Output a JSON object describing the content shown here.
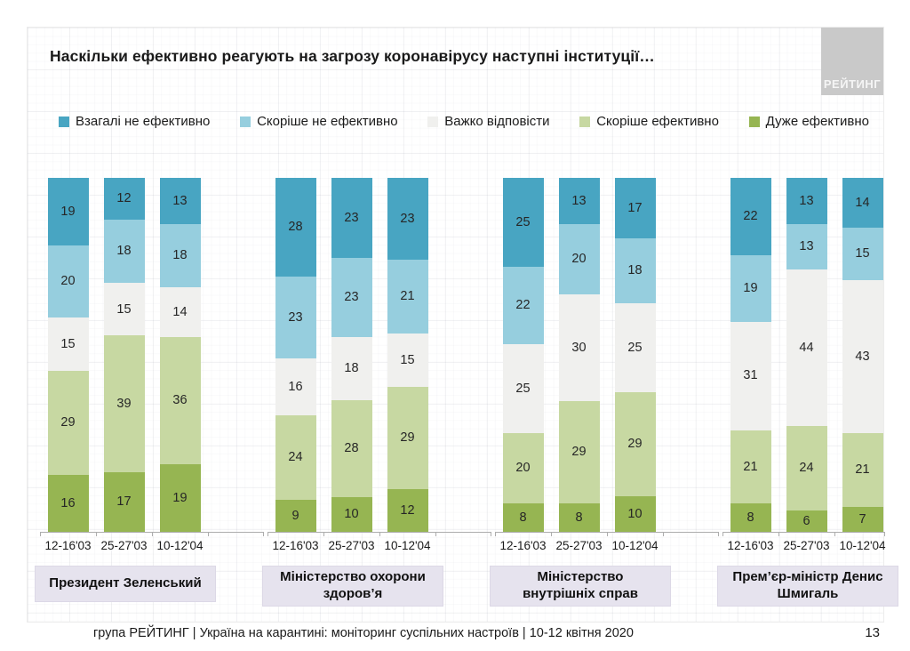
{
  "slide": {
    "title": "Наскільки ефективно реагують на загрозу коронавірусу наступні інституції…",
    "logo_text": "РЕЙТИНГ",
    "footer": "група РЕЙТИНГ | Україна на карантині: моніторинг суспільних настроїв  | 10-12 квітня  2020",
    "page_number": "13"
  },
  "chart_data": {
    "type": "bar",
    "variant": "stacked-100",
    "title": "Наскільки ефективно реагують на загрозу коронавірусу наступні інституції…",
    "legend_position": "top",
    "categories": [
      "12-16'03",
      "25-27'03",
      "10-12'04"
    ],
    "series": [
      {
        "name": "Взагалі не ефективно",
        "color": "#48a5c2"
      },
      {
        "name": "Скоріше не ефективно",
        "color": "#96cede"
      },
      {
        "name": "Важко відповісти",
        "color": "#f0f0ee"
      },
      {
        "name": "Скоріше ефективно",
        "color": "#c7d8a2"
      },
      {
        "name": "Дуже ефективно",
        "color": "#96b552"
      }
    ],
    "stack_order_top_to_bottom": true,
    "groups": [
      {
        "label": "Президент Зеленський",
        "bars": [
          [
            19,
            20,
            15,
            29,
            16
          ],
          [
            12,
            18,
            15,
            39,
            17
          ],
          [
            13,
            18,
            14,
            36,
            19
          ]
        ]
      },
      {
        "label": "Міністерство охорони здоров’я",
        "bars": [
          [
            28,
            23,
            16,
            24,
            9
          ],
          [
            23,
            23,
            18,
            28,
            10
          ],
          [
            23,
            21,
            15,
            29,
            12
          ]
        ]
      },
      {
        "label": "Міністерство внутрішніх справ",
        "bars": [
          [
            25,
            22,
            25,
            20,
            8
          ],
          [
            13,
            20,
            30,
            29,
            8
          ],
          [
            17,
            18,
            25,
            29,
            10
          ]
        ]
      },
      {
        "label": "Прем’єр-міністр Денис Шмигаль",
        "bars": [
          [
            22,
            19,
            31,
            21,
            8
          ],
          [
            13,
            13,
            44,
            24,
            6
          ],
          [
            14,
            15,
            43,
            21,
            7
          ]
        ]
      }
    ],
    "colors": {
      "axis": "#adadad",
      "value_text": "#262626",
      "group_label_box": "#e6e3ee",
      "logo_background": "#c9c9c9"
    }
  }
}
